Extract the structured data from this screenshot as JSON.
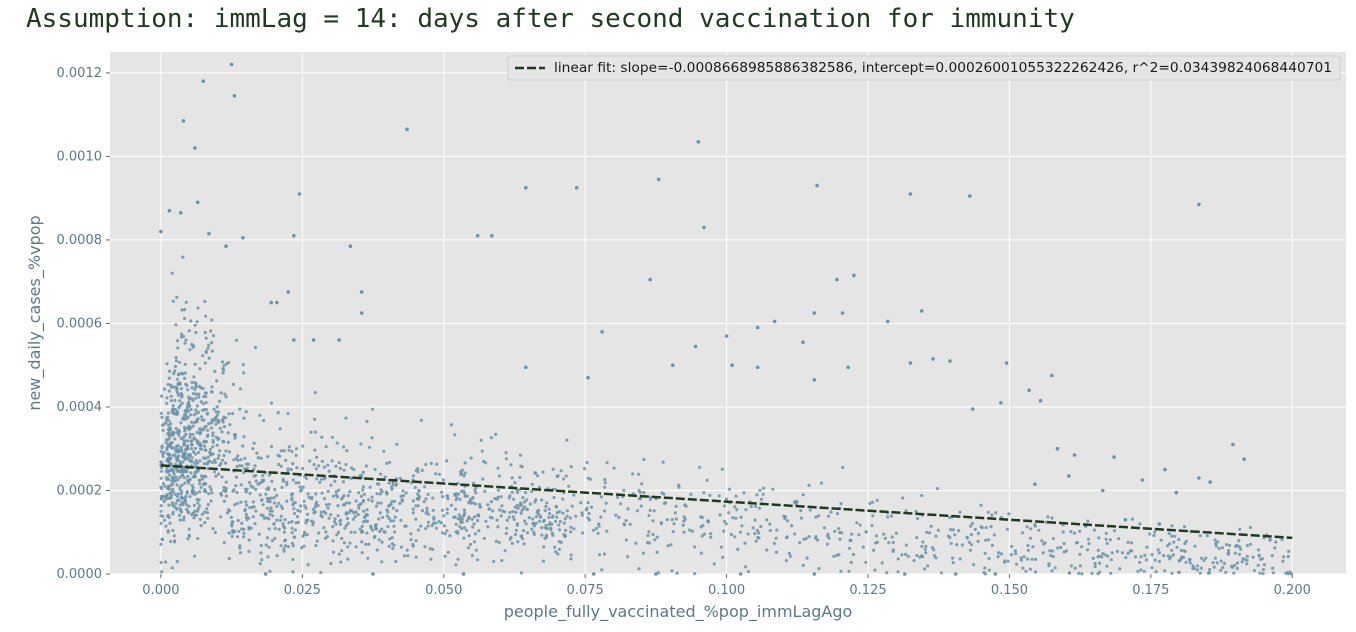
{
  "page_title": "Assumption: immLag = 14: days after second vaccination for immunity",
  "chart_data": {
    "type": "scatter",
    "title": "Assumption: immLag = 14: days after second vaccination for immunity",
    "xlabel": "people_fully_vaccinated_%pop_immLagAgo",
    "ylabel": "new_daily_cases_%vpop",
    "xlim": [
      -0.009,
      0.2095
    ],
    "ylim": [
      0,
      0.00125
    ],
    "x_ticks": [
      "0.000",
      "0.025",
      "0.050",
      "0.075",
      "0.100",
      "0.125",
      "0.150",
      "0.175",
      "0.200"
    ],
    "y_ticks": [
      "0.0000",
      "0.0002",
      "0.0004",
      "0.0006",
      "0.0008",
      "0.0010",
      "0.0012"
    ],
    "grid": true,
    "legend_position": "top-right",
    "colors": {
      "points": "#6b94a8",
      "fit_line": "#1f3a1f",
      "background": "#e5e5e5",
      "grid": "#ffffff"
    },
    "fit": {
      "name": "linear fit: slope=-0.0008668985886382586, intercept=0.00026001055322262426, r^2=0.03439824068440701",
      "slope": -0.0008668985886382586,
      "intercept": 0.00026001055322262426,
      "r2": 0.03439824068440701,
      "x_range": [
        0.0,
        0.2
      ]
    },
    "series": [
      {
        "points": [
          [
            0.0125,
            0.00122
          ],
          [
            0.0075,
            0.00118
          ],
          [
            0.013,
            0.001145
          ],
          [
            0.004,
            0.001085
          ],
          [
            0.006,
            0.00102
          ],
          [
            0.0435,
            0.001065
          ],
          [
            0.095,
            0.001035
          ],
          [
            0.0,
            0.00082
          ],
          [
            0.0015,
            0.00087
          ],
          [
            0.0035,
            0.000865
          ],
          [
            0.0065,
            0.00089
          ],
          [
            0.0245,
            0.00091
          ],
          [
            0.0645,
            0.000925
          ],
          [
            0.0735,
            0.000925
          ],
          [
            0.088,
            0.000945
          ],
          [
            0.116,
            0.00093
          ],
          [
            0.1325,
            0.00091
          ],
          [
            0.143,
            0.000905
          ],
          [
            0.1835,
            0.000885
          ],
          [
            0.096,
            0.00083
          ],
          [
            0.0085,
            0.000815
          ],
          [
            0.0145,
            0.000805
          ],
          [
            0.0235,
            0.00081
          ],
          [
            0.056,
            0.00081
          ],
          [
            0.0585,
            0.00081
          ],
          [
            0.0335,
            0.000785
          ],
          [
            0.0115,
            0.000785
          ],
          [
            0.0865,
            0.000705
          ],
          [
            0.1225,
            0.000715
          ],
          [
            0.1195,
            0.000705
          ],
          [
            0.0355,
            0.000675
          ],
          [
            0.0225,
            0.000675
          ],
          [
            0.0195,
            0.00065
          ],
          [
            0.0205,
            0.00065
          ],
          [
            0.0355,
            0.000625
          ],
          [
            0.1155,
            0.000625
          ],
          [
            0.1205,
            0.000625
          ],
          [
            0.1345,
            0.00063
          ],
          [
            0.1285,
            0.000605
          ],
          [
            0.1085,
            0.000605
          ],
          [
            0.078,
            0.00058
          ],
          [
            0.1055,
            0.00059
          ],
          [
            0.1,
            0.00057
          ],
          [
            0.1135,
            0.000555
          ],
          [
            0.0945,
            0.000545
          ],
          [
            0.0315,
            0.00056
          ],
          [
            0.0235,
            0.00056
          ],
          [
            0.027,
            0.00056
          ],
          [
            0.1365,
            0.000515
          ],
          [
            0.1395,
            0.00051
          ],
          [
            0.1325,
            0.000505
          ],
          [
            0.1495,
            0.000505
          ],
          [
            0.1575,
            0.000475
          ],
          [
            0.0645,
            0.000495
          ],
          [
            0.0755,
            0.00047
          ],
          [
            0.0905,
            0.0005
          ],
          [
            0.101,
            0.0005
          ],
          [
            0.1055,
            0.000495
          ],
          [
            0.1215,
            0.000495
          ],
          [
            0.1155,
            0.000465
          ],
          [
            0.1535,
            0.00044
          ],
          [
            0.1555,
            0.000415
          ],
          [
            0.1485,
            0.00041
          ],
          [
            0.1435,
            0.000395
          ],
          [
            0.1585,
            0.0003
          ],
          [
            0.1615,
            0.000285
          ],
          [
            0.1685,
            0.00028
          ],
          [
            0.1775,
            0.00025
          ],
          [
            0.1835,
            0.00023
          ],
          [
            0.1855,
            0.00022
          ],
          [
            0.1895,
            0.00031
          ],
          [
            0.1915,
            0.000275
          ],
          [
            0.1735,
            0.000225
          ],
          [
            0.1795,
            0.000195
          ],
          [
            0.1665,
            0.0002
          ],
          [
            0.1545,
            0.000215
          ],
          [
            0.1605,
            0.000235
          ],
          [
            0.1635,
            0.000115
          ],
          [
            0.1765,
            0.00012
          ],
          [
            0.1705,
            0.00013
          ],
          [
            0.1475,
            0.0
          ],
          [
            0.1405,
            0.0
          ],
          [
            0.1025,
            0.0
          ],
          [
            0.0875,
            0.0
          ],
          [
            0.0765,
            0.0
          ],
          [
            0.0535,
            0.0
          ],
          [
            0.0185,
            0.0
          ],
          [
            0.0375,
            0.0
          ],
          [
            0.1155,
            0.0
          ],
          [
            0.1315,
            0.0
          ]
        ]
      }
    ]
  }
}
